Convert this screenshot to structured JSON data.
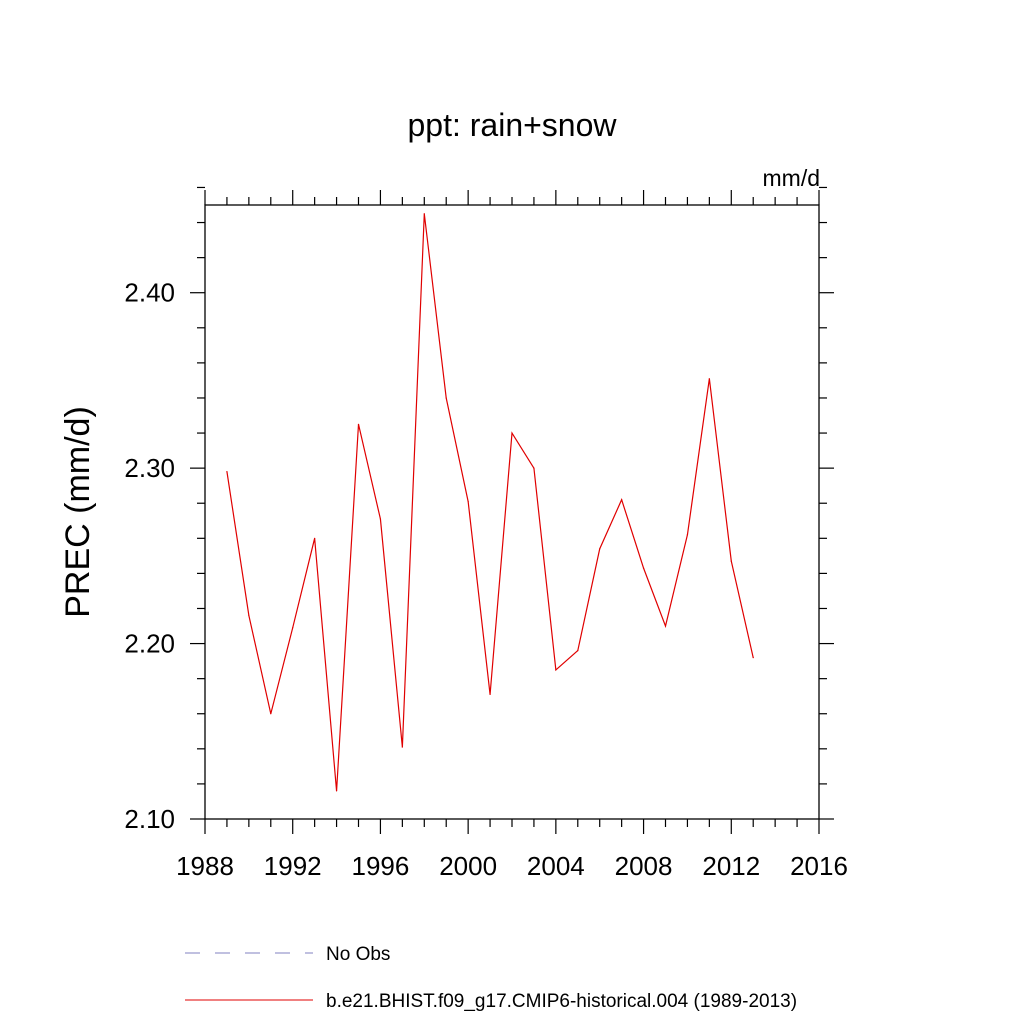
{
  "chart_data": {
    "type": "line",
    "title": "ppt: rain+snow",
    "units_label": "mm/d",
    "ylabel": "PREC  (mm/d)",
    "xlabel": "",
    "xlim": [
      1988,
      2016
    ],
    "ylim": [
      2.1,
      2.45
    ],
    "x_ticks": [
      1988,
      1992,
      1996,
      2000,
      2004,
      2008,
      2012,
      2016
    ],
    "y_ticks": [
      2.1,
      2.2,
      2.3,
      2.4
    ],
    "y_tick_labels": [
      "2.10",
      "2.20",
      "2.30",
      "2.40"
    ],
    "x_minor_step": 1,
    "y_minor_step": 0.02,
    "grid": false,
    "legend_placement": "bottom",
    "legend": [
      {
        "label": "No Obs",
        "style": "dashed",
        "color": "#8080c0"
      },
      {
        "label": "b.e21.BHIST.f09_g17.CMIP6-historical.004 (1989-2013)",
        "style": "solid",
        "color": "#e00000"
      }
    ],
    "series": [
      {
        "name": "b.e21.BHIST.f09_g17.CMIP6-historical.004 (1989-2013)",
        "color": "#e00000",
        "x": [
          1989,
          1990,
          1991,
          1992,
          1993,
          1994,
          1995,
          1996,
          1997,
          1998,
          1999,
          2000,
          2001,
          2002,
          2003,
          2004,
          2005,
          2006,
          2007,
          2008,
          2009,
          2010,
          2011,
          2012,
          2013
        ],
        "values": [
          2.298,
          2.216,
          2.16,
          2.209,
          2.26,
          2.116,
          2.325,
          2.271,
          2.141,
          2.445,
          2.34,
          2.281,
          2.171,
          2.32,
          2.3,
          2.185,
          2.196,
          2.254,
          2.282,
          2.243,
          2.21,
          2.262,
          2.351,
          2.247,
          2.192
        ]
      }
    ]
  }
}
